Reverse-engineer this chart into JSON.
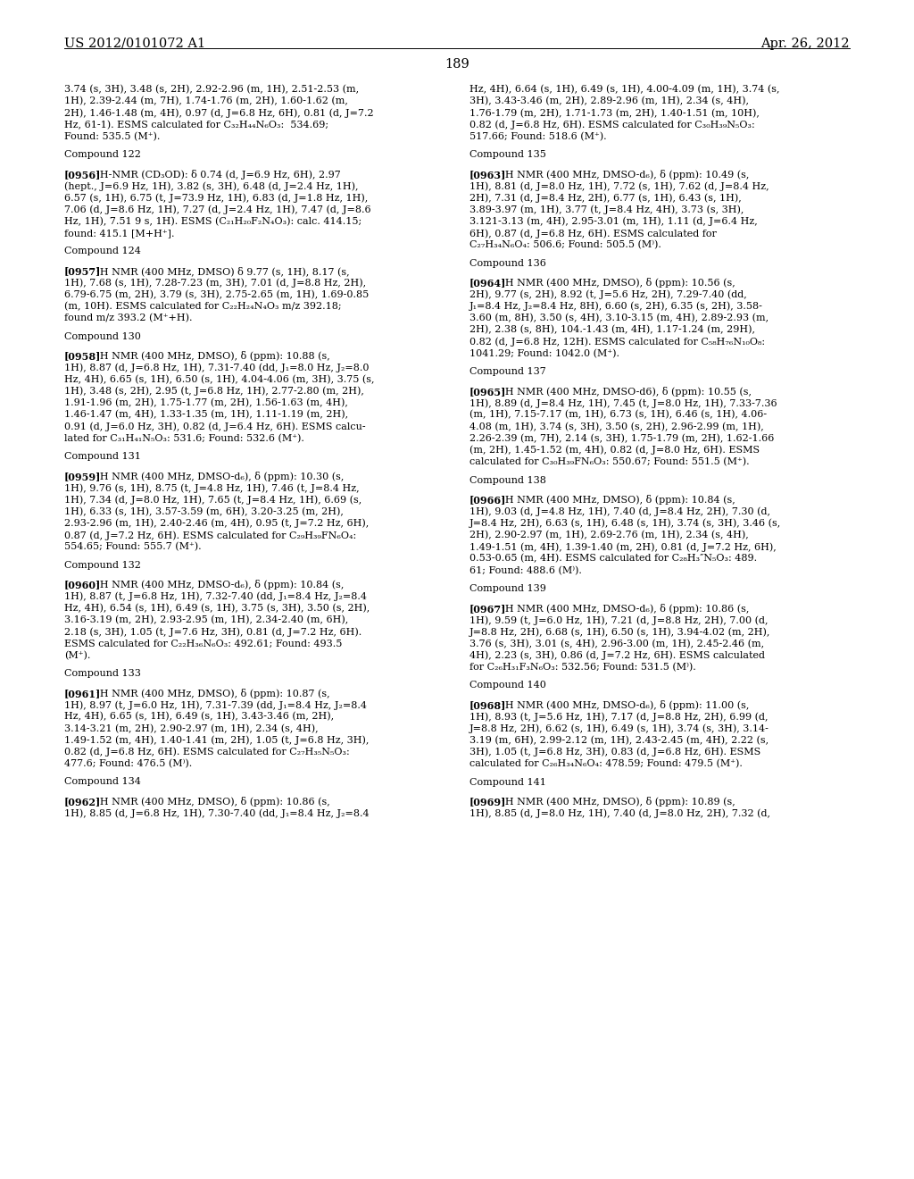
{
  "header_left": "US 2012/0101072 A1",
  "header_right": "Apr. 26, 2012",
  "page_number": "189",
  "background_color": "#ffffff",
  "text_color": "#000000",
  "left_column_text": "3.74 (s, 3H), 3.48 (s, 2H), 2.92-2.96 (m, 1H), 2.51-2.53 (m,\n1H), 2.39-2.44 (m, 7H), 1.74-1.76 (m, 2H), 1.60-1.62 (m,\n2H), 1.46-1.48 (m, 4H), 0.97 (d, J=6.8 Hz, 6H), 0.81 (d, J=7.2\nHz, 61-1). ESMS calculated for C₃₂H₄₄N₆O₃:  534.69;\nFound: 535.5 (M⁺).\n\nCompound 122\n\n[0956]   ¹H-NMR (CD₃OD): δ 0.74 (d, J=6.9 Hz, 6H), 2.97\n(hept., J=6.9 Hz, 1H), 3.82 (s, 3H), 6.48 (d, J=2.4 Hz, 1H),\n6.57 (s, 1H), 6.75 (t, J=73.9 Hz, 1H), 6.83 (d, J=1.8 Hz, 1H),\n7.06 (d, J=8.6 Hz, 1H), 7.27 (d, J=2.4 Hz, 1H), 7.47 (d, J=8.6\nHz, 1H), 7.51 9 s, 1H). ESMS (C₂₁H₂₀F₂N₄O₃): calc. 414.15;\nfound: 415.1 [M+H⁺].\n\nCompound 124\n\n[0957]   ¹H NMR (400 MHz, DMSO) δ 9.77 (s, 1H), 8.17 (s,\n1H), 7.68 (s, 1H), 7.28-7.23 (m, 3H), 7.01 (d, J=8.8 Hz, 2H),\n6.79-6.75 (m, 2H), 3.79 (s, 3H), 2.75-2.65 (m, 1H), 1.69-0.85\n(m, 10H). ESMS calculated for C₂₂H₂₄N₄O₃ m/z 392.18;\nfound m/z 393.2 (M⁺+H).\n\nCompound 130\n\n[0958]   ¹H NMR (400 MHz, DMSO), δ (ppm): 10.88 (s,\n1H), 8.87 (d, J=6.8 Hz, 1H), 7.31-7.40 (dd, J₁=8.0 Hz, J₂=8.0\nHz, 4H), 6.65 (s, 1H), 6.50 (s, 1H), 4.04-4.06 (m, 3H), 3.75 (s,\n1H), 3.48 (s, 2H), 2.95 (t, J=6.8 Hz, 1H), 2.77-2.80 (m, 2H),\n1.91-1.96 (m, 2H), 1.75-1.77 (m, 2H), 1.56-1.63 (m, 4H),\n1.46-1.47 (m, 4H), 1.33-1.35 (m, 1H), 1.11-1.19 (m, 2H),\n0.91 (d, J=6.0 Hz, 3H), 0.82 (d, J=6.4 Hz, 6H). ESMS calcu-\nlated for C₃₁H₄₁N₅O₃: 531.6; Found: 532.6 (M⁺).\n\nCompound 131\n\n[0959]   ¹H NMR (400 MHz, DMSO-d₆), δ (ppm): 10.30 (s,\n1H), 9.76 (s, 1H), 8.75 (t, J=4.8 Hz, 1H), 7.46 (t, J=8.4 Hz,\n1H), 7.34 (d, J=8.0 Hz, 1H), 7.65 (t, J=8.4 Hz, 1H), 6.69 (s,\n1H), 6.33 (s, 1H), 3.57-3.59 (m, 6H), 3.20-3.25 (m, 2H),\n2.93-2.96 (m, 1H), 2.40-2.46 (m, 4H), 0.95 (t, J=7.2 Hz, 6H),\n0.87 (d, J=7.2 Hz, 6H). ESMS calculated for C₂₉H₃₉FN₆O₄:\n554.65; Found: 555.7 (M⁺).\n\nCompound 132\n\n[0960]   ¹H NMR (400 MHz, DMSO-d₆), δ (ppm): 10.84 (s,\n1H), 8.87 (t, J=6.8 Hz, 1H), 7.32-7.40 (dd, J₁=8.4 Hz, J₂=8.4\nHz, 4H), 6.54 (s, 1H), 6.49 (s, 1H), 3.75 (s, 3H), 3.50 (s, 2H),\n3.16-3.19 (m, 2H), 2.93-2.95 (m, 1H), 2.34-2.40 (m, 6H),\n2.18 (s, 3H), 1.05 (t, J=7.6 Hz, 3H), 0.81 (d, J=7.2 Hz, 6H).\nESMS calculated for C₂₂H₃₆N₆O₃: 492.61; Found: 493.5\n(M⁺).\n\nCompound 133\n\n[0961]   ¹H NMR (400 MHz, DMSO), δ (ppm): 10.87 (s,\n1H), 8.97 (t, J=6.0 Hz, 1H), 7.31-7.39 (dd, J₁=8.4 Hz, J₂=8.4\nHz, 4H), 6.65 (s, 1H), 6.49 (s, 1H), 3.43-3.46 (m, 2H),\n3.14-3.21 (m, 2H), 2.90-2.97 (m, 1H), 2.34 (s, 4H),\n1.49-1.52 (m, 4H), 1.40-1.41 (m, 2H), 1.05 (t, J=6.8 Hz, 3H),\n0.82 (d, J=6.8 Hz, 6H). ESMS calculated for C₂₇H₃₅N₅O₃:\n477.6; Found: 476.5 (M⁾).\n\nCompound 134\n\n[0962]   ¹H NMR (400 MHz, DMSO), δ (ppm): 10.86 (s,\n1H), 8.85 (d, J=6.8 Hz, 1H), 7.30-7.40 (dd, J₁=8.4 Hz, J₂=8.4",
  "right_column_text": "Hz, 4H), 6.64 (s, 1H), 6.49 (s, 1H), 4.00-4.09 (m, 1H), 3.74 (s,\n3H), 3.43-3.46 (m, 2H), 2.89-2.96 (m, 1H), 2.34 (s, 4H),\n1.76-1.79 (m, 2H), 1.71-1.73 (m, 2H), 1.40-1.51 (m, 10H),\n0.82 (d, J=6.8 Hz, 6H). ESMS calculated for C₃₀H₃₉N₅O₃:\n517.66; Found: 518.6 (M⁺).\n\nCompound 135\n\n[0963]   ¹H NMR (400 MHz, DMSO-d₆), δ (ppm): 10.49 (s,\n1H), 8.81 (d, J=8.0 Hz, 1H), 7.72 (s, 1H), 7.62 (d, J=8.4 Hz,\n2H), 7.31 (d, J=8.4 Hz, 2H), 6.77 (s, 1H), 6.43 (s, 1H),\n3.89-3.97 (m, 1H), 3.77 (t, J=8.4 Hz, 4H), 3.73 (s, 3H),\n3.121-3.13 (m, 4H), 2.95-3.01 (m, 1H), 1.11 (d, J=6.4 Hz,\n6H), 0.87 (d, J=6.8 Hz, 6H). ESMS calculated for\nC₂₇H₃₄N₆O₄: 506.6; Found: 505.5 (M⁾).\n\nCompound 136\n\n[0964]   ¹H NMR (400 MHz, DMSO), δ (ppm): 10.56 (s,\n2H), 9.77 (s, 2H), 8.92 (t, J=5.6 Hz, 2H), 7.29-7.40 (dd,\nJ₁=8.4 Hz, J₂=8.4 Hz, 8H), 6.60 (s, 2H), 6.35 (s, 2H), 3.58-\n3.60 (m, 8H), 3.50 (s, 4H), 3.10-3.15 (m, 4H), 2.89-2.93 (m,\n2H), 2.38 (s, 8H), 104.-1.43 (m, 4H), 1.17-1.24 (m, 29H),\n0.82 (d, J=6.8 Hz, 12H). ESMS calculated for C₅₈H₇₆N₁₀O₈:\n1041.29; Found: 1042.0 (M⁺).\n\nCompound 137\n\n[0965]   ¹H NMR (400 MHz, DMSO-d6), δ (ppm): 10.55 (s,\n1H), 8.89 (d, J=8.4 Hz, 1H), 7.45 (t, J=8.0 Hz, 1H), 7.33-7.36\n(m, 1H), 7.15-7.17 (m, 1H), 6.73 (s, 1H), 6.46 (s, 1H), 4.06-\n4.08 (m, 1H), 3.74 (s, 3H), 3.50 (s, 2H), 2.96-2.99 (m, 1H),\n2.26-2.39 (m, 7H), 2.14 (s, 3H), 1.75-1.79 (m, 2H), 1.62-1.66\n(m, 2H), 1.45-1.52 (m, 4H), 0.82 (d, J=8.0 Hz, 6H). ESMS\ncalculated for C₃₀H₃₉FN₆O₃: 550.67; Found: 551.5 (M⁺).\n\nCompound 138\n\n[0966]   ¹H NMR (400 MHz, DMSO), δ (ppm): 10.84 (s,\n1H), 9.03 (d, J=4.8 Hz, 1H), 7.40 (d, J=8.4 Hz, 2H), 7.30 (d,\nJ=8.4 Hz, 2H), 6.63 (s, 1H), 6.48 (s, 1H), 3.74 (s, 3H), 3.46 (s,\n2H), 2.90-2.97 (m, 1H), 2.69-2.76 (m, 1H), 2.34 (s, 4H),\n1.49-1.51 (m, 4H), 1.39-1.40 (m, 2H), 0.81 (d, J=7.2 Hz, 6H),\n0.53-0.65 (m, 4H). ESMS calculated for C₂₈H₃″N₅O₃: 489.\n61; Found: 488.6 (M⁾).\n\nCompound 139\n\n[0967]   ¹H NMR (400 MHz, DMSO-d₆), δ (ppm): 10.86 (s,\n1H), 9.59 (t, J=6.0 Hz, 1H), 7.21 (d, J=8.8 Hz, 2H), 7.00 (d,\nJ=8.8 Hz, 2H), 6.68 (s, 1H), 6.50 (s, 1H), 3.94-4.02 (m, 2H),\n3.76 (s, 3H), 3.01 (s, 4H), 2.96-3.00 (m, 1H), 2.45-2.46 (m,\n4H), 2.23 (s, 3H), 0.86 (d, J=7.2 Hz, 6H). ESMS calculated\nfor C₂₆H₃₁F₃N₆O₃: 532.56; Found: 531.5 (M⁾).\n\nCompound 140\n\n[0968]   ¹H NMR (400 MHz, DMSO-d₆), δ (ppm): 11.00 (s,\n1H), 8.93 (t, J=5.6 Hz, 1H), 7.17 (d, J=8.8 Hz, 2H), 6.99 (d,\nJ=8.8 Hz, 2H), 6.62 (s, 1H), 6.49 (s, 1H), 3.74 (s, 3H), 3.14-\n3.19 (m, 6H), 2.99-2.12 (m, 1H), 2.43-2.45 (m, 4H), 2.22 (s,\n3H), 1.05 (t, J=6.8 Hz, 3H), 0.83 (d, J=6.8 Hz, 6H). ESMS\ncalculated for C₂₆H₃₄N₆O₄: 478.59; Found: 479.5 (M⁺).\n\nCompound 141\n\n[0969]   ¹H NMR (400 MHz, DMSO), δ (ppm): 10.89 (s,\n1H), 8.85 (d, J=8.0 Hz, 1H), 7.40 (d, J=8.0 Hz, 2H), 7.32 (d,"
}
